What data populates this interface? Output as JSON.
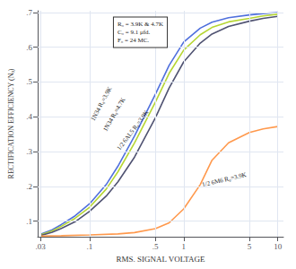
{
  "chart_data": {
    "type": "line",
    "xlabel": "RMS. SIGNAL VOLTAGE",
    "ylabel": "RECTIFICATION EFFICIENCY (Nₒ)",
    "log": "x",
    "grid": true,
    "xlim": [
      0.028,
      11.5
    ],
    "ylim": [
      0.055,
      0.705
    ],
    "xticks": [
      {
        "value": 0.03,
        "label": ".03"
      },
      {
        "value": 0.1,
        "label": ".1"
      },
      {
        "value": 0.5,
        "label": ".5"
      },
      1,
      5,
      10
    ],
    "yticks": [
      {
        "value": 0.1,
        "label": ".1"
      },
      {
        "value": 0.2,
        "label": ".2"
      },
      {
        "value": 0.3,
        "label": ".3"
      },
      {
        "value": 0.4,
        "label": ".4"
      },
      {
        "value": 0.5,
        "label": ".5"
      },
      {
        "value": 0.6,
        "label": ".6"
      },
      {
        "value": 0.7,
        "label": ".7"
      }
    ],
    "series": [
      {
        "name": "1N34 R₀=3.9K",
        "x": [
          0.03,
          0.04,
          0.05,
          0.07,
          0.1,
          0.15,
          0.2,
          0.3,
          0.5,
          0.7,
          1.0,
          1.5,
          2.0,
          3.0,
          5.0,
          7.0,
          10.0
        ],
        "values": [
          0.062,
          0.075,
          0.09,
          0.115,
          0.15,
          0.205,
          0.258,
          0.345,
          0.465,
          0.548,
          0.615,
          0.655,
          0.672,
          0.685,
          0.693,
          0.697,
          0.7
        ]
      },
      {
        "name": "1N34 R₀=4.7K",
        "x": [
          0.03,
          0.04,
          0.05,
          0.07,
          0.1,
          0.15,
          0.2,
          0.3,
          0.5,
          0.7,
          1.0,
          1.5,
          2.0,
          3.0,
          5.0,
          7.0,
          10.0
        ],
        "values": [
          0.06,
          0.072,
          0.085,
          0.108,
          0.14,
          0.192,
          0.242,
          0.325,
          0.442,
          0.525,
          0.592,
          0.636,
          0.657,
          0.673,
          0.683,
          0.69,
          0.695
        ]
      },
      {
        "name": "1/2 6AL5 R₀=3.9K",
        "x": [
          0.03,
          0.04,
          0.05,
          0.07,
          0.1,
          0.15,
          0.2,
          0.3,
          0.5,
          0.7,
          1.0,
          1.5,
          2.0,
          3.0,
          5.0,
          7.0,
          10.0
        ],
        "values": [
          0.058,
          0.068,
          0.079,
          0.098,
          0.128,
          0.172,
          0.213,
          0.284,
          0.397,
          0.483,
          0.558,
          0.612,
          0.638,
          0.66,
          0.675,
          0.683,
          0.689
        ]
      },
      {
        "name": "1/2 6M6 R₀=3.9K",
        "x": [
          0.03,
          0.05,
          0.1,
          0.2,
          0.3,
          0.5,
          0.7,
          1.0,
          1.5,
          2.0,
          3.0,
          5.0,
          7.0,
          10.0
        ],
        "values": [
          0.057,
          0.058,
          0.06,
          0.063,
          0.067,
          0.078,
          0.095,
          0.135,
          0.205,
          0.275,
          0.325,
          0.355,
          0.365,
          0.372
        ]
      }
    ],
    "annotations": [
      {
        "text": "1N34 R₀=3.9K",
        "x": 0.115,
        "y": 0.385
      },
      {
        "text": "1N34 R₀=4.7K",
        "x": 0.155,
        "y": 0.355
      },
      {
        "text": "1/2 6AL5 R₀=3.9K",
        "x": 0.215,
        "y": 0.3
      },
      {
        "text": "1/2 6M6 R₀=3.9K",
        "x": 1.6,
        "y": 0.195
      },
      {
        "text": "R₀ = 3.9K & 4.7K\nC₀ = 9.1 μfd.\nF₀ = 24 MC."
      }
    ]
  }
}
